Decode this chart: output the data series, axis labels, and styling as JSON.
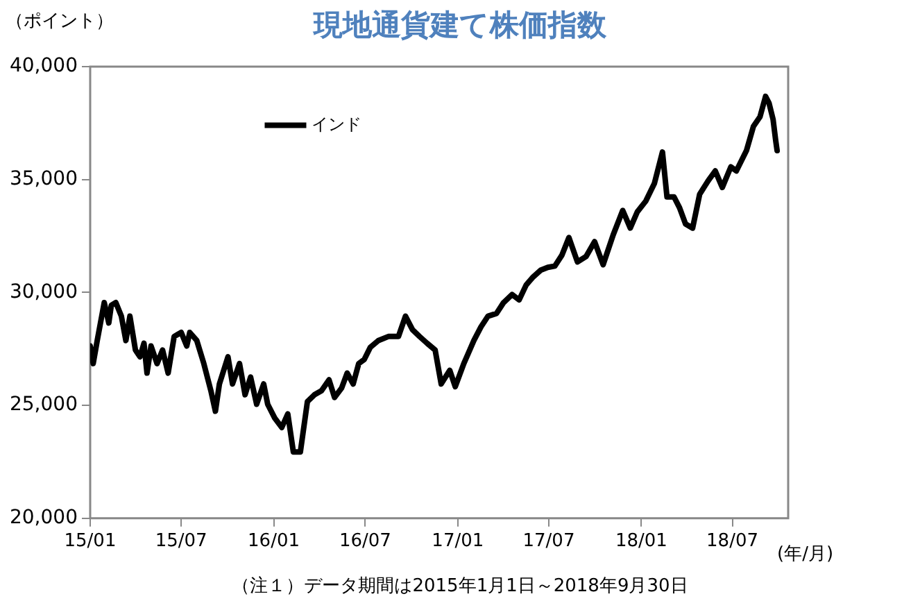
{
  "chart_data": {
    "type": "line",
    "title": "現地通貨建て株価指数",
    "ylabel": "（ポイント）",
    "xlabel": "(年/月)",
    "annotations": [
      "（注１）データ期間は2015年1月1日～2018年9月30日"
    ],
    "x": [
      "2015-01-01",
      "2015-01-07",
      "2015-01-15",
      "2015-01-29",
      "2015-02-07",
      "2015-02-12",
      "2015-02-21",
      "2015-03-04",
      "2015-03-13",
      "2015-03-21",
      "2015-04-01",
      "2015-04-10",
      "2015-04-18",
      "2015-04-24",
      "2015-05-02",
      "2015-05-14",
      "2015-05-25",
      "2015-06-05",
      "2015-06-17",
      "2015-07-01",
      "2015-07-12",
      "2015-07-18",
      "2015-08-01",
      "2015-08-15",
      "2015-08-29",
      "2015-09-07",
      "2015-09-15",
      "2015-10-02",
      "2015-10-11",
      "2015-10-25",
      "2015-11-05",
      "2015-11-16",
      "2015-11-28",
      "2015-12-12",
      "2015-12-20",
      "2016-01-03",
      "2016-01-17",
      "2016-01-29",
      "2016-02-09",
      "2016-02-23",
      "2016-03-08",
      "2016-03-22",
      "2016-04-05",
      "2016-04-20",
      "2016-05-01",
      "2016-05-15",
      "2016-05-26",
      "2016-06-07",
      "2016-06-18",
      "2016-06-29",
      "2016-07-11",
      "2016-07-27",
      "2016-08-16",
      "2016-09-05",
      "2016-09-19",
      "2016-10-03",
      "2016-10-17",
      "2016-11-01",
      "2016-11-17",
      "2016-11-29",
      "2016-12-16",
      "2016-12-27",
      "2017-01-13",
      "2017-02-02",
      "2017-02-16",
      "2017-03-02",
      "2017-03-19",
      "2017-04-02",
      "2017-04-19",
      "2017-05-03",
      "2017-05-17",
      "2017-05-31",
      "2017-06-15",
      "2017-06-29",
      "2017-07-13",
      "2017-07-27",
      "2017-08-10",
      "2017-08-27",
      "2017-09-13",
      "2017-09-30",
      "2017-10-17",
      "2017-11-06",
      "2017-11-25",
      "2017-12-10",
      "2017-12-24",
      "2018-01-10",
      "2018-01-27",
      "2018-02-12",
      "2018-02-21",
      "2018-03-07",
      "2018-03-18",
      "2018-03-30",
      "2018-04-13",
      "2018-04-27",
      "2018-05-14",
      "2018-05-28",
      "2018-06-11",
      "2018-06-28",
      "2018-07-09",
      "2018-07-29",
      "2018-08-12",
      "2018-08-25",
      "2018-09-05",
      "2018-09-12",
      "2018-09-20",
      "2018-09-25",
      "2018-09-28"
    ],
    "series": [
      {
        "name": "インド",
        "color": "#000000",
        "values": [
          27630,
          26850,
          27870,
          29550,
          28650,
          29430,
          29550,
          28950,
          27870,
          28950,
          27450,
          27150,
          27750,
          26430,
          27630,
          26850,
          27450,
          26430,
          28050,
          28230,
          27630,
          28230,
          27870,
          26850,
          25650,
          24740,
          25950,
          27150,
          25950,
          26850,
          25470,
          26250,
          25050,
          25950,
          25050,
          24440,
          24020,
          24620,
          22940,
          22940,
          25170,
          25470,
          25650,
          26130,
          25350,
          25770,
          26430,
          25950,
          26850,
          27030,
          27570,
          27870,
          28050,
          28050,
          28950,
          28350,
          28050,
          27750,
          27450,
          25950,
          26550,
          25830,
          26850,
          27870,
          28470,
          28950,
          29070,
          29550,
          29910,
          29670,
          30330,
          30690,
          30990,
          31110,
          31170,
          31650,
          32430,
          31350,
          31590,
          32250,
          31230,
          32550,
          33630,
          32850,
          33570,
          34050,
          34830,
          36220,
          34230,
          34230,
          33750,
          33030,
          32850,
          34350,
          34950,
          35380,
          34650,
          35560,
          35380,
          36280,
          37360,
          37780,
          38680,
          38380,
          37660,
          36760,
          36280
        ]
      }
    ],
    "xlim": [
      "2015-01-01",
      "2018-10-20"
    ],
    "xticks": [
      {
        "value": "2015-01",
        "label": "15/01"
      },
      {
        "value": "2015-07",
        "label": "15/07"
      },
      {
        "value": "2016-01",
        "label": "16/01"
      },
      {
        "value": "2016-07",
        "label": "16/07"
      },
      {
        "value": "2017-01",
        "label": "17/01"
      },
      {
        "value": "2017-07",
        "label": "17/07"
      },
      {
        "value": "2018-01",
        "label": "18/01"
      },
      {
        "value": "2018-07",
        "label": "18/07"
      }
    ],
    "ylim": [
      20000,
      40000
    ],
    "yticks": [
      {
        "value": 20000,
        "label": "20,000"
      },
      {
        "value": 25000,
        "label": "25,000"
      },
      {
        "value": 30000,
        "label": "30,000"
      },
      {
        "value": 35000,
        "label": "35,000"
      },
      {
        "value": 40000,
        "label": "40,000"
      }
    ],
    "legend": "top left",
    "grid": false,
    "line_style": "solid"
  }
}
